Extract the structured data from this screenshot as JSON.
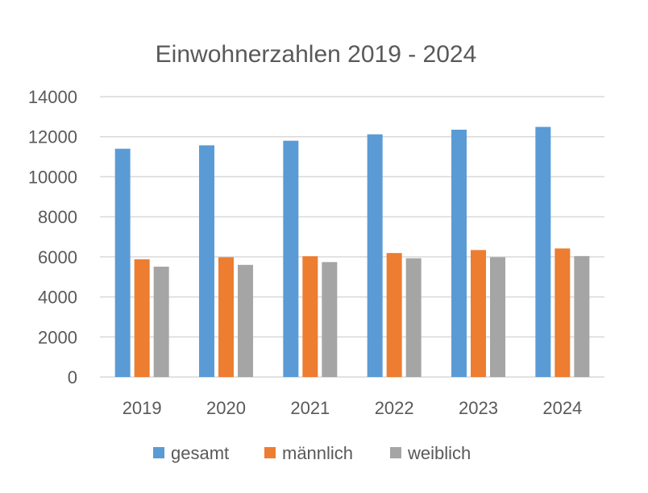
{
  "chart_data": {
    "type": "bar",
    "title": "Einwohnerzahlen 2019 - 2024",
    "categories": [
      "2019",
      "2020",
      "2021",
      "2022",
      "2023",
      "2024"
    ],
    "series": [
      {
        "name": "gesamt",
        "color": "#5B9BD5",
        "values": [
          11400,
          11570,
          11800,
          12120,
          12350,
          12490
        ]
      },
      {
        "name": "männlich",
        "color": "#ED7D31",
        "values": [
          5880,
          5980,
          6030,
          6190,
          6340,
          6420
        ]
      },
      {
        "name": "weiblich",
        "color": "#A5A5A5",
        "values": [
          5510,
          5600,
          5740,
          5930,
          5980,
          6040
        ]
      }
    ],
    "ylim": [
      0,
      14000
    ],
    "yticks": [
      0,
      2000,
      4000,
      6000,
      8000,
      10000,
      12000,
      14000
    ],
    "grid": true,
    "legend": "bottom",
    "colors": {
      "grid": "#D9D9D9",
      "text": "#595959"
    }
  }
}
